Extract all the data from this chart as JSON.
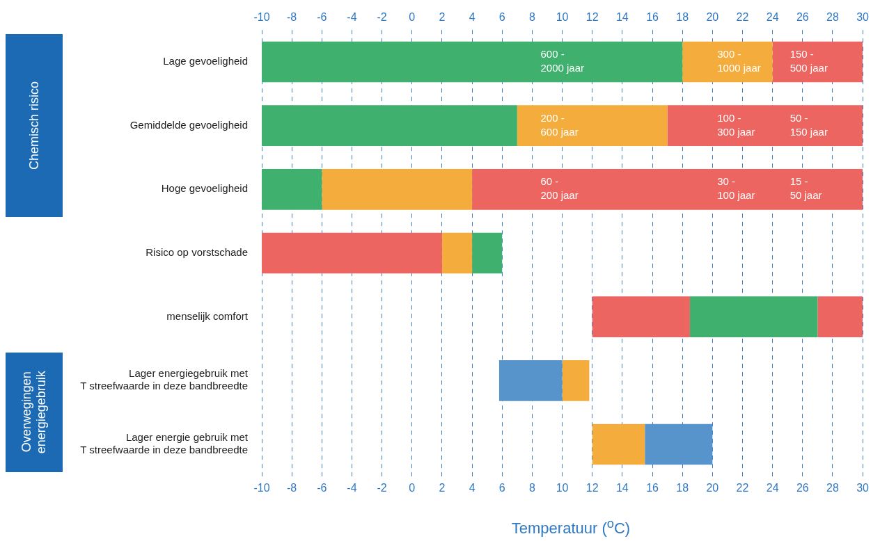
{
  "chart_data": {
    "type": "bar",
    "orientation": "horizontal",
    "xlabel": "Temperatuur ($^{o}$C)",
    "categories": [
      "Lage gevoeligheid",
      "Gemiddelde gevoeligheid",
      "Hoge gevoeligheid",
      "Risico op vorstschade",
      "menselijk comfort",
      "Lager energiegebruik met T streefwaarde in deze bandbreedte",
      "Lager energie gebruik met T streefwaarde in deze bandbreedte"
    ],
    "series": [
      {
        "base": [
          -10,
          -10,
          -10,
          -10,
          12,
          5.8,
          12
        ],
        "values": [
          28,
          17,
          4,
          12,
          6.5,
          4.2,
          3.5
        ],
        "colors": [
          "#3fb06d",
          "#3fb06d",
          "#3fb06d",
          "#ec6560",
          "#ec6560",
          "#5694cb",
          "#f4ad3d"
        ]
      },
      {
        "base": [
          18,
          7,
          -6,
          2,
          18.5,
          10,
          15.5
        ],
        "values": [
          6,
          10,
          10,
          2,
          8.5,
          1.8,
          4.5
        ],
        "colors": [
          "#f4ad3d",
          "#f4ad3d",
          "#f4ad3d",
          "#f4ad3d",
          "#3fb06d",
          "#f4ad3d",
          "#5694cb"
        ]
      },
      {
        "base": [
          24,
          17,
          4,
          4,
          27,
          null,
          null
        ],
        "values": [
          6,
          13,
          26,
          2,
          3,
          null,
          null
        ],
        "colors": [
          "#ec6560",
          "#ec6560",
          "#ec6560",
          "#3fb06d",
          "#ec6560",
          null,
          null
        ]
      }
    ],
    "xlim": [
      -10,
      30
    ],
    "xticks": [
      -10,
      -8,
      -6,
      -4,
      -2,
      0,
      2,
      4,
      6,
      8,
      10,
      12,
      14,
      16,
      18,
      20,
      22,
      24,
      26,
      28,
      30
    ],
    "x2lim": [
      -10,
      30
    ],
    "x2ticks": [
      -10,
      -8,
      -6,
      -4,
      -2,
      0,
      2,
      4,
      6,
      8,
      10,
      12,
      14,
      16,
      18,
      20,
      22,
      24,
      26,
      28,
      30
    ],
    "grid": "x",
    "legend": false,
    "annotations": [
      "Chemisch risico",
      "Overwegingen energiegebruik",
      "600 - 2000 jaar",
      "300 - 1000 jaar",
      "150 - 500 jaar",
      "200 - 600 jaar",
      "100 - 300 jaar",
      "50 - 150 jaar",
      "60 - 200 jaar",
      "30 - 100 jaar",
      "15 - 50 jaar"
    ]
  }
}
